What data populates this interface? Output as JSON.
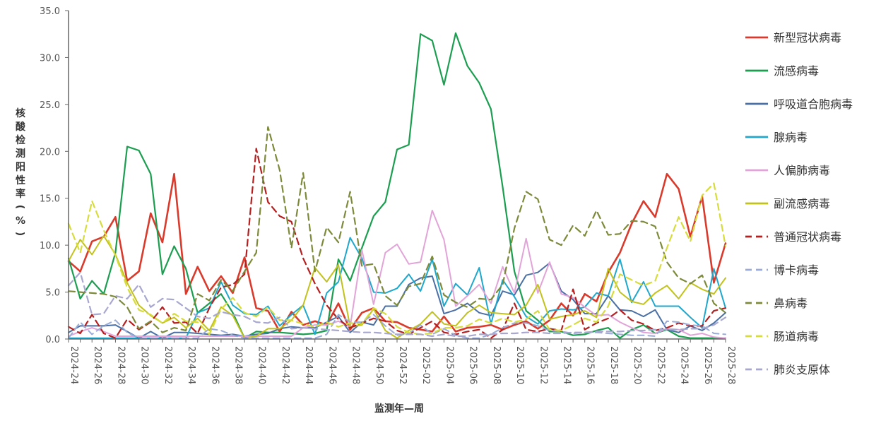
{
  "chart_data": {
    "type": "line",
    "title": "",
    "xlabel": "监测年—周",
    "ylabel": "核酸检测阳性率(%)",
    "ylim": [
      0,
      35
    ],
    "yticks": [
      "0.0",
      "5.0",
      "10.0",
      "15.0",
      "20.0",
      "25.0",
      "30.0",
      "35.0"
    ],
    "grid": false,
    "legend_position": "right",
    "x": [
      "2024-24",
      "2024-25",
      "2024-26",
      "2024-27",
      "2024-28",
      "2024-29",
      "2024-30",
      "2024-31",
      "2024-32",
      "2024-33",
      "2024-34",
      "2024-35",
      "2024-36",
      "2024-37",
      "2024-38",
      "2024-39",
      "2024-40",
      "2024-41",
      "2024-42",
      "2024-43",
      "2024-44",
      "2024-45",
      "2024-46",
      "2024-47",
      "2024-48",
      "2024-49",
      "2024-50",
      "2024-51",
      "2024-52",
      "2025-01",
      "2025-02",
      "2025-03",
      "2025-04",
      "2025-05",
      "2025-06",
      "2025-07",
      "2025-08",
      "2025-09",
      "2025-10",
      "2025-11",
      "2025-12",
      "2025-13",
      "2025-14",
      "2025-15",
      "2025-16",
      "2025-17",
      "2025-18",
      "2025-19",
      "2025-20",
      "2025-21",
      "2025-22",
      "2025-23",
      "2025-24",
      "2025-25",
      "2025-26",
      "2025-27",
      "2025-28"
    ],
    "xtick_labels": [
      "2024-24",
      "2024-26",
      "2024-28",
      "2024-30",
      "2024-32",
      "2024-34",
      "2024-36",
      "2024-38",
      "2024-40",
      "2024-42",
      "2024-44",
      "2024-46",
      "2024-48",
      "2024-50",
      "2024-52",
      "2025-02",
      "2025-04",
      "2025-06",
      "2025-08",
      "2025-10",
      "2025-12",
      "2025-14",
      "2025-16",
      "2025-18",
      "2025-20",
      "2025-22",
      "2025-24",
      "2025-26",
      "2025-28"
    ],
    "series": [
      {
        "name": "新型冠状病毒",
        "color": "#d93a2b",
        "dash": "solid",
        "width": 2.6,
        "values": [
          8.3,
          7.2,
          10.4,
          10.9,
          13.0,
          6.2,
          7.2,
          13.4,
          10.3,
          17.6,
          4.8,
          7.7,
          5.1,
          6.7,
          4.9,
          8.7,
          3.3,
          3.0,
          0.8,
          2.9,
          1.5,
          1.9,
          1.5,
          3.8,
          1.0,
          2.8,
          3.3,
          1.9,
          1.8,
          1.2,
          1.0,
          0.8,
          2.4,
          0.8,
          1.2,
          1.3,
          1.5,
          1.0,
          1.5,
          1.9,
          1.1,
          2.0,
          3.8,
          2.5,
          4.8,
          4.0,
          7.1,
          9.2,
          12.3,
          14.7,
          13.0,
          17.6,
          16.0,
          10.9,
          15.2,
          6.0,
          10.2
        ]
      },
      {
        "name": "流感病毒",
        "color": "#1c9e50",
        "dash": "solid",
        "width": 2.2,
        "values": [
          8.6,
          4.3,
          6.2,
          4.8,
          9.2,
          20.5,
          20.1,
          17.6,
          6.9,
          9.9,
          7.5,
          2.8,
          3.8,
          4.8,
          2.8,
          0.1,
          0.8,
          0.7,
          0.7,
          0.6,
          0.5,
          0.6,
          0.9,
          8.5,
          6.2,
          9.7,
          13.1,
          14.6,
          20.2,
          20.7,
          32.5,
          31.8,
          27.1,
          32.6,
          29.1,
          27.3,
          24.5,
          16.2,
          7.2,
          3.0,
          2.0,
          0.8,
          0.8,
          0.4,
          0.5,
          0.9,
          1.2,
          0.1,
          1.0,
          1.5,
          0.6,
          1.0,
          0.3,
          0.1,
          0.1,
          0.1,
          0.1
        ]
      },
      {
        "name": "呼吸道合胞病毒",
        "color": "#4a6fa5",
        "dash": "solid",
        "width": 2.0,
        "values": [
          0.7,
          1.4,
          1.4,
          1.4,
          1.5,
          0.8,
          0.1,
          0.8,
          0.1,
          0.7,
          0.7,
          0.6,
          0.5,
          0.4,
          0.5,
          0.3,
          0.5,
          0.6,
          1.1,
          1.3,
          1.2,
          1.2,
          1.8,
          2.4,
          0.7,
          1.8,
          1.5,
          3.5,
          3.5,
          5.8,
          6.5,
          6.7,
          2.7,
          3.1,
          3.8,
          2.8,
          2.5,
          5.1,
          4.7,
          6.8,
          7.1,
          8.1,
          5.1,
          4.2,
          2.7,
          2.7,
          4.6,
          3.1,
          3.0,
          2.4,
          3.1,
          1.0,
          0.7,
          1.4,
          0.9,
          1.7,
          2.8
        ]
      },
      {
        "name": "腺病毒",
        "color": "#1fa7cc",
        "dash": "solid",
        "width": 2.0,
        "values": [
          0.1,
          0.1,
          0.1,
          0.1,
          0.1,
          0.1,
          0.1,
          0.1,
          0.1,
          0.1,
          0.1,
          2.8,
          3.3,
          6.1,
          3.6,
          2.7,
          2.6,
          3.5,
          1.4,
          2.6,
          3.6,
          0.5,
          4.9,
          6.1,
          10.8,
          8.6,
          5.0,
          4.9,
          5.4,
          6.9,
          5.1,
          8.5,
          3.5,
          5.9,
          4.7,
          7.6,
          1.6,
          6.3,
          4.5,
          2.4,
          1.6,
          3.0,
          3.2,
          3.1,
          3.4,
          4.9,
          4.6,
          8.5,
          3.9,
          6.1,
          3.5,
          3.5,
          3.5,
          2.3,
          1.2,
          7.5,
          3.3
        ]
      },
      {
        "name": "人偏肺病毒",
        "color": "#e2a4d8",
        "dash": "solid",
        "width": 2.0,
        "values": [
          0.3,
          0.8,
          1.2,
          0.8,
          0.3,
          0.3,
          0.3,
          0.3,
          0.3,
          0.3,
          0.3,
          0.3,
          0.3,
          0.3,
          0.3,
          0.3,
          0.3,
          0.3,
          0.3,
          0.3,
          1.2,
          1.5,
          1.5,
          1.9,
          1.3,
          9.5,
          3.7,
          9.2,
          10.1,
          8.0,
          8.2,
          13.7,
          10.6,
          3.5,
          4.6,
          5.8,
          3.8,
          7.7,
          4.9,
          10.7,
          4.9,
          8.2,
          4.8,
          4.4,
          3.4,
          2.5,
          2.6,
          1.8,
          1.2,
          0.7,
          0.6,
          1.1,
          1.0,
          0.4,
          0.6,
          0.2,
          0.1
        ]
      },
      {
        "name": "副流感病毒",
        "color": "#c2c21c",
        "dash": "solid",
        "width": 2.0,
        "values": [
          8.3,
          10.6,
          9.0,
          11.0,
          9.0,
          6.0,
          3.6,
          2.5,
          1.7,
          2.3,
          1.2,
          2.2,
          0.9,
          3.4,
          2.5,
          0.1,
          0.3,
          1.1,
          1.1,
          2.0,
          3.6,
          7.6,
          6.1,
          7.9,
          1.3,
          1.5,
          3.2,
          0.9,
          0.1,
          0.9,
          1.6,
          2.9,
          1.6,
          1.4,
          2.8,
          3.6,
          2.8,
          2.7,
          2.6,
          3.6,
          5.8,
          2.1,
          2.4,
          2.6,
          3.0,
          2.3,
          7.5,
          5.0,
          4.0,
          3.7,
          4.9,
          5.7,
          4.3,
          6.0,
          5.3,
          4.8,
          6.5
        ]
      },
      {
        "name": "普通冠状病毒",
        "color": "#b51f1f",
        "dash": "dash",
        "width": 2.2,
        "values": [
          1.3,
          0.6,
          2.6,
          0.6,
          0.1,
          2.1,
          1.0,
          1.8,
          3.4,
          1.7,
          1.8,
          0.6,
          3.3,
          5.5,
          5.8,
          6.9,
          20.3,
          14.6,
          13.1,
          12.5,
          8.6,
          5.9,
          3.6,
          2.1,
          1.2,
          1.7,
          2.2,
          1.9,
          0.9,
          0.5,
          1.2,
          1.9,
          0.7,
          0.5,
          0.8,
          1.0,
          0.1,
          1.0,
          3.8,
          1.0,
          0.8,
          1.1,
          0.9,
          5.3,
          1.0,
          1.7,
          2.2,
          3.1,
          2.0,
          1.6,
          0.9,
          1.2,
          1.7,
          1.4,
          1.4,
          3.0,
          3.3
        ]
      },
      {
        "name": "博卡病毒",
        "color": "#9aabd8",
        "dash": "dash",
        "width": 2.0,
        "values": [
          0.1,
          1.8,
          0.5,
          1.4,
          2.0,
          0.7,
          0.1,
          0.1,
          0.1,
          0.1,
          0.1,
          0.1,
          1.1,
          0.9,
          0.4,
          0.1,
          0.1,
          0.1,
          0.1,
          0.1,
          0.1,
          0.1,
          0.5,
          2.6,
          1.8,
          1.8,
          2.6,
          1.4,
          0.4,
          0.6,
          1.5,
          0.5,
          1.1,
          0.4,
          0.1,
          0.1,
          0.5,
          1.2,
          1.7,
          1.7,
          1.4,
          0.9,
          0.8,
          0.6,
          0.7,
          0.7,
          0.6,
          0.5,
          0.4,
          0.4,
          0.3,
          1.9,
          1.8,
          1.5,
          1.4,
          0.6,
          0.5
        ]
      },
      {
        "name": "鼻病毒",
        "color": "#7d8a3a",
        "dash": "dash",
        "width": 2.2,
        "values": [
          5.1,
          5.0,
          4.9,
          4.8,
          4.5,
          3.4,
          1.1,
          1.9,
          0.7,
          1.2,
          0.9,
          4.8,
          4.1,
          6.3,
          5.1,
          7.2,
          9.2,
          22.6,
          18.0,
          9.7,
          17.7,
          7.2,
          11.9,
          10.3,
          15.7,
          7.8,
          8.0,
          4.6,
          3.6,
          5.6,
          5.9,
          8.8,
          4.7,
          3.9,
          3.4,
          4.3,
          4.2,
          5.8,
          11.8,
          15.7,
          14.9,
          10.6,
          10.0,
          12.1,
          11.0,
          13.7,
          11.1,
          11.2,
          12.6,
          12.5,
          12.0,
          8.2,
          6.5,
          5.9,
          6.8,
          3.8,
          2.8
        ]
      },
      {
        "name": "肠道病毒",
        "color": "#d6dc3c",
        "dash": "dash",
        "width": 2.2,
        "values": [
          12.3,
          9.2,
          14.7,
          11.6,
          8.9,
          5.5,
          3.1,
          2.6,
          1.7,
          2.7,
          1.9,
          1.8,
          0.5,
          3.2,
          4.4,
          2.8,
          2.4,
          3.4,
          2.0,
          2.0,
          1.6,
          1.3,
          1.8,
          1.3,
          1.7,
          1.6,
          3.3,
          2.7,
          1.3,
          0.7,
          0.5,
          0.6,
          1.2,
          1.2,
          1.4,
          2.1,
          1.7,
          2.2,
          1.8,
          2.1,
          3.0,
          1.0,
          0.9,
          1.5,
          2.2,
          1.8,
          3.5,
          6.9,
          6.3,
          5.7,
          6.2,
          9.7,
          13.0,
          10.4,
          15.3,
          16.6,
          9.9
        ]
      },
      {
        "name": "肺炎支原体",
        "color": "#a7a7cf",
        "dash": "dash",
        "width": 2.2,
        "values": [
          5.7,
          7.1,
          2.6,
          2.7,
          4.6,
          4.3,
          5.8,
          3.4,
          4.3,
          4.2,
          3.3,
          2.4,
          2.2,
          2.9,
          2.6,
          2.4,
          1.8,
          1.7,
          2.3,
          1.1,
          1.2,
          1.1,
          1.0,
          0.9,
          0.8,
          0.7,
          0.7,
          0.6,
          0.5,
          0.5,
          0.5,
          0.3,
          0.5,
          0.3,
          0.3,
          0.5,
          0.5,
          0.6,
          0.6,
          0.7,
          0.7,
          0.6,
          0.6,
          0.7,
          0.7,
          0.8,
          0.8,
          0.8,
          0.9,
          0.9,
          1.0,
          1.0,
          1.0,
          1.1,
          1.1,
          1.5,
          2.3
        ]
      }
    ]
  }
}
